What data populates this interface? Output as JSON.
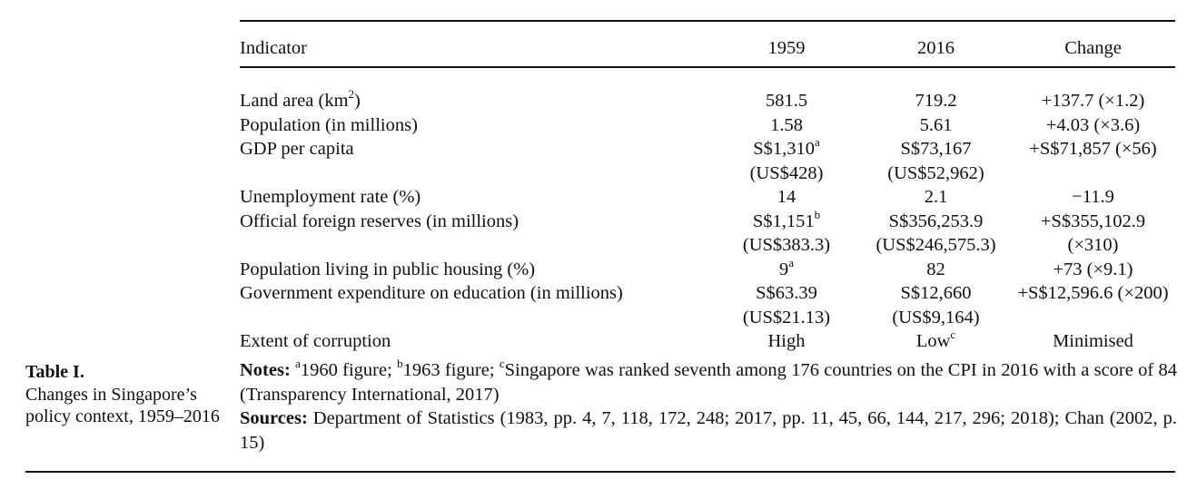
{
  "caption": {
    "label": "Table I.",
    "text": "Changes in Singapore’s policy context, 1959–2016"
  },
  "table": {
    "headers": [
      "Indicator",
      "1959",
      "2016",
      "Change"
    ],
    "rows": [
      {
        "indicator": "Land area (km",
        "indicator_sup": "2",
        "indicator_suffix": ")",
        "y1959": "581.5",
        "y2016": "719.2",
        "change": "+137.7 (×1.2)"
      },
      {
        "indicator": "Population (in millions)",
        "y1959": "1.58",
        "y2016": "5.61",
        "change": "+4.03 (×3.6)"
      },
      {
        "indicator": "GDP per capita",
        "y1959": "S$1,310",
        "y1959_sup": "a",
        "y1959_line2": "(US$428)",
        "y2016": "S$73,167",
        "y2016_line2": "(US$52,962)",
        "change": "+S$71,857 (×56)"
      },
      {
        "indicator": "Unemployment rate (%)",
        "y1959": "14",
        "y2016": "2.1",
        "change": "−11.9"
      },
      {
        "indicator": "Official foreign reserves (in millions)",
        "y1959": "S$1,151",
        "y1959_sup": "b",
        "y1959_line2": "(US$383.3)",
        "y2016": "S$356,253.9",
        "y2016_line2": "(US$246,575.3)",
        "change": "+S$355,102.9",
        "change_line2": "(×310)"
      },
      {
        "indicator": "Population living in public housing (%)",
        "y1959": "9",
        "y1959_sup": "a",
        "y2016": "82",
        "change": "+73 (×9.1)"
      },
      {
        "indicator": "Government expenditure on education (in millions)",
        "y1959": "S$63.39",
        "y1959_line2": "(US$21.13)",
        "y2016": "S$12,660",
        "y2016_line2": "(US$9,164)",
        "change": "+S$12,596.6 (×200)"
      },
      {
        "indicator": "Extent of corruption",
        "y1959": "High",
        "y2016": "Low",
        "y2016_sup": "c",
        "change": "Minimised"
      }
    ]
  },
  "notes": {
    "label": "Notes:",
    "sup_a": "a",
    "text_a": "1960 figure; ",
    "sup_b": "b",
    "text_b": "1963 figure; ",
    "sup_c": "c",
    "text_c": "Singapore was ranked seventh among 176 countries on the CPI in 2016 with a score of 84 (Transparency International, 2017)"
  },
  "sources": {
    "label": "Sources:",
    "text": "Department of Statistics (1983, pp. 4, 7, 118, 172, 248; 2017, pp. 11, 45, 66, 144, 217, 296; 2018); Chan (2002, p. 15)"
  }
}
